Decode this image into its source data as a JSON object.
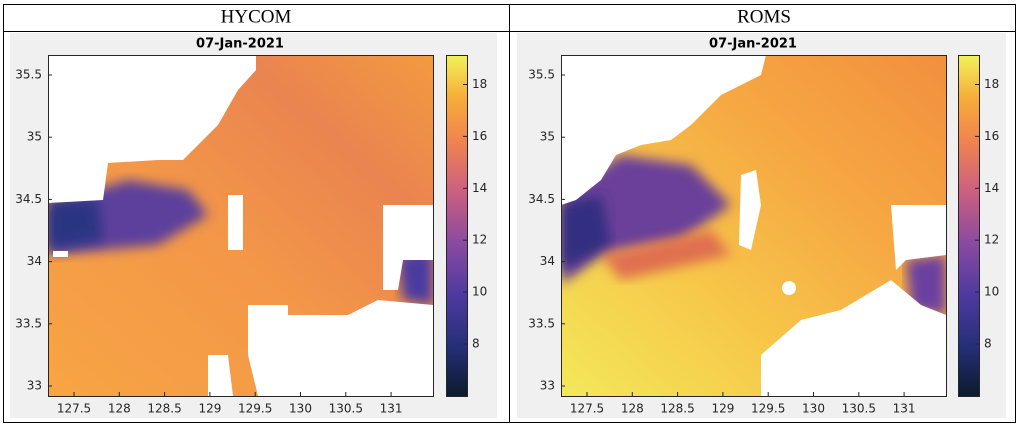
{
  "table": {
    "headers": [
      "HYCOM",
      "ROMS"
    ],
    "panels": [
      {
        "title": "07-Jan-2021",
        "yticks": [
          33,
          33.5,
          34,
          34.5,
          35,
          35.5
        ],
        "xticks": [
          127.5,
          128,
          128.5,
          129,
          129.5,
          130,
          130.5,
          131
        ],
        "colorbar_ticks": [
          8,
          10,
          12,
          14,
          16,
          18
        ]
      },
      {
        "title": "07-Jan-2021",
        "yticks": [
          33,
          33.5,
          34,
          34.5,
          35,
          35.5
        ],
        "xticks": [
          127.5,
          128,
          128.5,
          129,
          129.5,
          130,
          130.5,
          131
        ],
        "colorbar_ticks": [
          8,
          10,
          12,
          14,
          16,
          18
        ]
      }
    ]
  }
}
